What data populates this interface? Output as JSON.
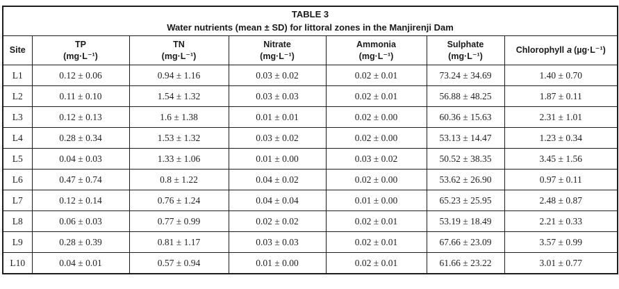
{
  "table": {
    "title": "TABLE 3",
    "subtitle": "Water nutrients (mean ± SD) for littoral zones in the Manjirenji Dam",
    "columns": [
      {
        "label": "Site",
        "unit": ""
      },
      {
        "label": "TP",
        "unit": "(mg·L⁻¹)"
      },
      {
        "label": "TN",
        "unit": "(mg·L⁻¹)"
      },
      {
        "label": "Nitrate",
        "unit": "(mg·L⁻¹)"
      },
      {
        "label": "Ammonia",
        "unit": "(mg·L⁻¹)"
      },
      {
        "label": "Sulphate",
        "unit": "(mg·L⁻¹)"
      },
      {
        "label_prefix": "Chlorophyll",
        "label_italic": "a",
        "unit": "(µg·L⁻¹)"
      }
    ],
    "rows": [
      [
        "L1",
        "0.12 ± 0.06",
        "0.94 ± 1.16",
        "0.03 ± 0.02",
        "0.02 ± 0.01",
        "73.24 ± 34.69",
        "1.40 ± 0.70"
      ],
      [
        "L2",
        "0.11 ± 0.10",
        "1.54 ± 1.32",
        "0.03 ± 0.03",
        "0.02 ± 0.01",
        "56.88 ± 48.25",
        "1.87 ± 0.11"
      ],
      [
        "L3",
        "0.12 ± 0.13",
        "1.6 ± 1.38",
        "0.01 ± 0.01",
        "0.02 ± 0.00",
        "60.36 ± 15.63",
        "2.31 ± 1.01"
      ],
      [
        "L4",
        "0.28 ± 0.34",
        "1.53 ± 1.32",
        "0.03 ± 0.02",
        "0.02 ± 0.00",
        "53.13 ± 14.47",
        "1.23 ± 0.34"
      ],
      [
        "L5",
        "0.04 ± 0.03",
        "1.33 ± 1.06",
        "0.01 ± 0.00",
        "0.03 ± 0.02",
        "50.52 ± 38.35",
        "3.45 ± 1.56"
      ],
      [
        "L6",
        "0.47 ± 0.74",
        "0.8 ± 1.22",
        "0.04 ± 0.02",
        "0.02 ± 0.00",
        "53.62 ± 26.90",
        "0.97 ± 0.11"
      ],
      [
        "L7",
        "0.12 ± 0.14",
        "0.76 ± 1.24",
        "0.04 ± 0.04",
        "0.01 ± 0.00",
        "65.23 ± 25.95",
        "2.48 ± 0.87"
      ],
      [
        "L8",
        "0.06 ± 0.03",
        "0.77 ± 0.99",
        "0.02 ± 0.02",
        "0.02 ± 0.01",
        "53.19 ± 18.49",
        "2.21 ± 0.33"
      ],
      [
        "L9",
        "0.28 ± 0.39",
        "0.81 ± 1.17",
        "0.03 ± 0.03",
        "0.02 ± 0.01",
        "67.66 ± 23.09",
        "3.57 ± 0.99"
      ],
      [
        "L10",
        "0.04 ± 0.01",
        "0.57 ± 0.94",
        "0.01 ± 0.00",
        "0.02 ± 0.01",
        "61.66 ± 23.22",
        "3.01 ± 0.77"
      ]
    ],
    "colors": {
      "border": "#1c1c1c",
      "text": "#1f1f1f",
      "background": "#ffffff"
    }
  }
}
